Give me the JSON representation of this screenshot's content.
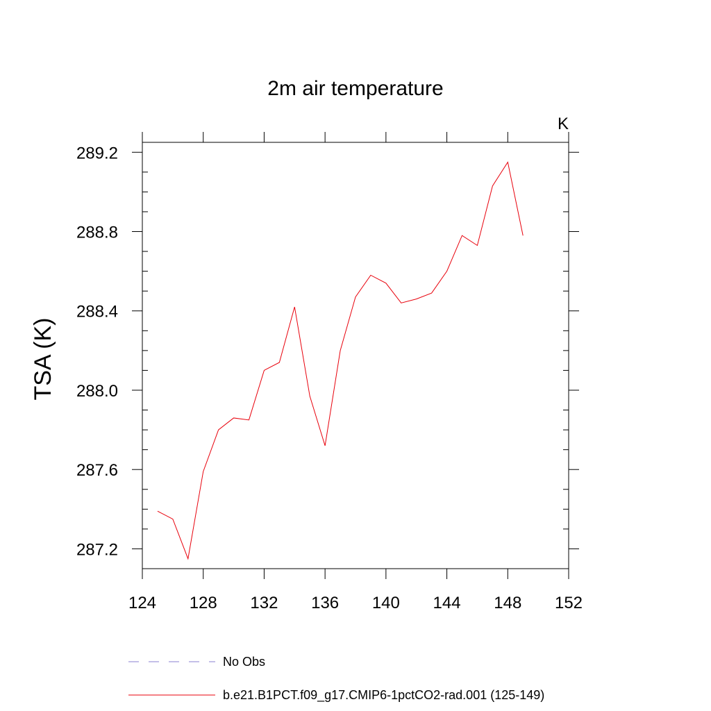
{
  "chart_data": {
    "type": "line",
    "title": "2m air temperature",
    "units": "K",
    "xlabel": "",
    "ylabel": "TSA  (K)",
    "xlim": [
      124,
      152
    ],
    "ylim": [
      287.1,
      289.25
    ],
    "x_ticks": [
      124,
      128,
      132,
      136,
      140,
      144,
      148,
      152
    ],
    "x_tick_labels": [
      "124",
      "128",
      "132",
      "136",
      "140",
      "144",
      "148",
      "152"
    ],
    "y_ticks": [
      287.2,
      287.6,
      288.0,
      288.4,
      288.8,
      289.2
    ],
    "y_tick_labels": [
      "287.2",
      "287.6",
      "288.0",
      "288.4",
      "288.8",
      "289.2"
    ],
    "grid": false,
    "legend_position": "bottom",
    "legend": [
      {
        "label": "No Obs",
        "style": "dashed",
        "color": "#8a7fd0"
      },
      {
        "label": "b.e21.B1PCT.f09_g17.CMIP6-1pctCO2-rad.001 (125-149)",
        "style": "solid",
        "color": "#e8000b"
      }
    ],
    "series": [
      {
        "name": "b.e21.B1PCT.f09_g17.CMIP6-1pctCO2-rad.001 (125-149)",
        "color": "#e8000b",
        "x": [
          125,
          126,
          127,
          128,
          129,
          130,
          131,
          132,
          133,
          134,
          135,
          136,
          137,
          138,
          139,
          140,
          141,
          142,
          143,
          144,
          145,
          146,
          147,
          148,
          149
        ],
        "values": [
          287.39,
          287.35,
          287.15,
          287.59,
          287.8,
          287.86,
          287.85,
          288.1,
          288.14,
          288.42,
          287.97,
          287.72,
          288.2,
          288.47,
          288.58,
          288.54,
          288.44,
          288.46,
          288.49,
          288.6,
          288.78,
          288.73,
          289.03,
          289.15,
          288.78
        ]
      }
    ]
  }
}
